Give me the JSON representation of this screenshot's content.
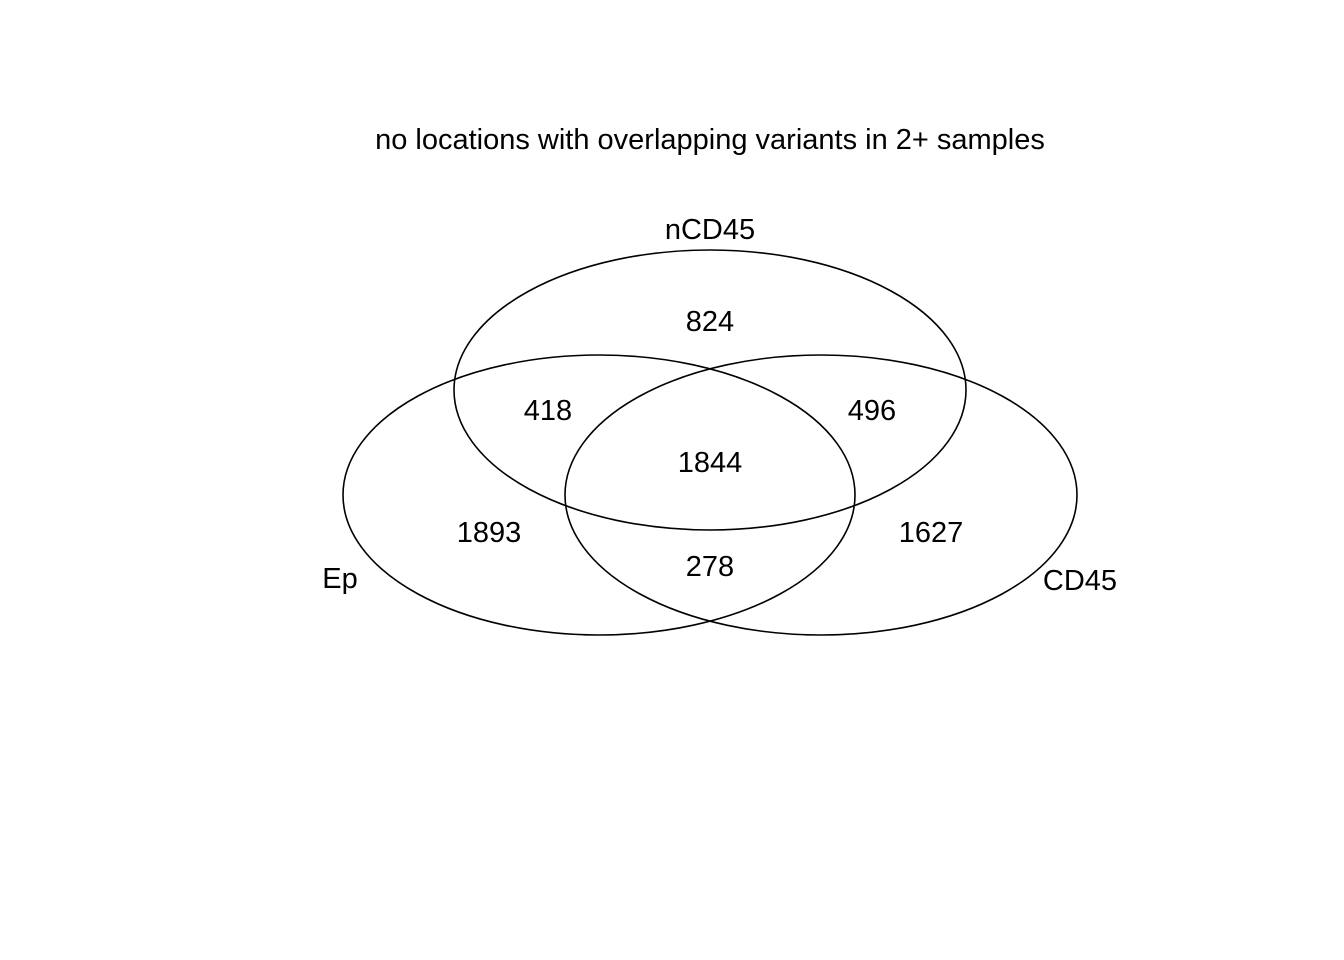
{
  "title": "no locations with overlapping variants in 2+ samples",
  "sets": {
    "top": "nCD45",
    "left": "Ep",
    "right": "CD45"
  },
  "regions": {
    "only_top": "824",
    "only_left": "1893",
    "only_right": "1627",
    "left_top": "418",
    "right_top": "496",
    "left_right": "278",
    "all_three": "1844"
  },
  "colors": {
    "stroke": "#000000",
    "background": "#ffffff"
  }
}
